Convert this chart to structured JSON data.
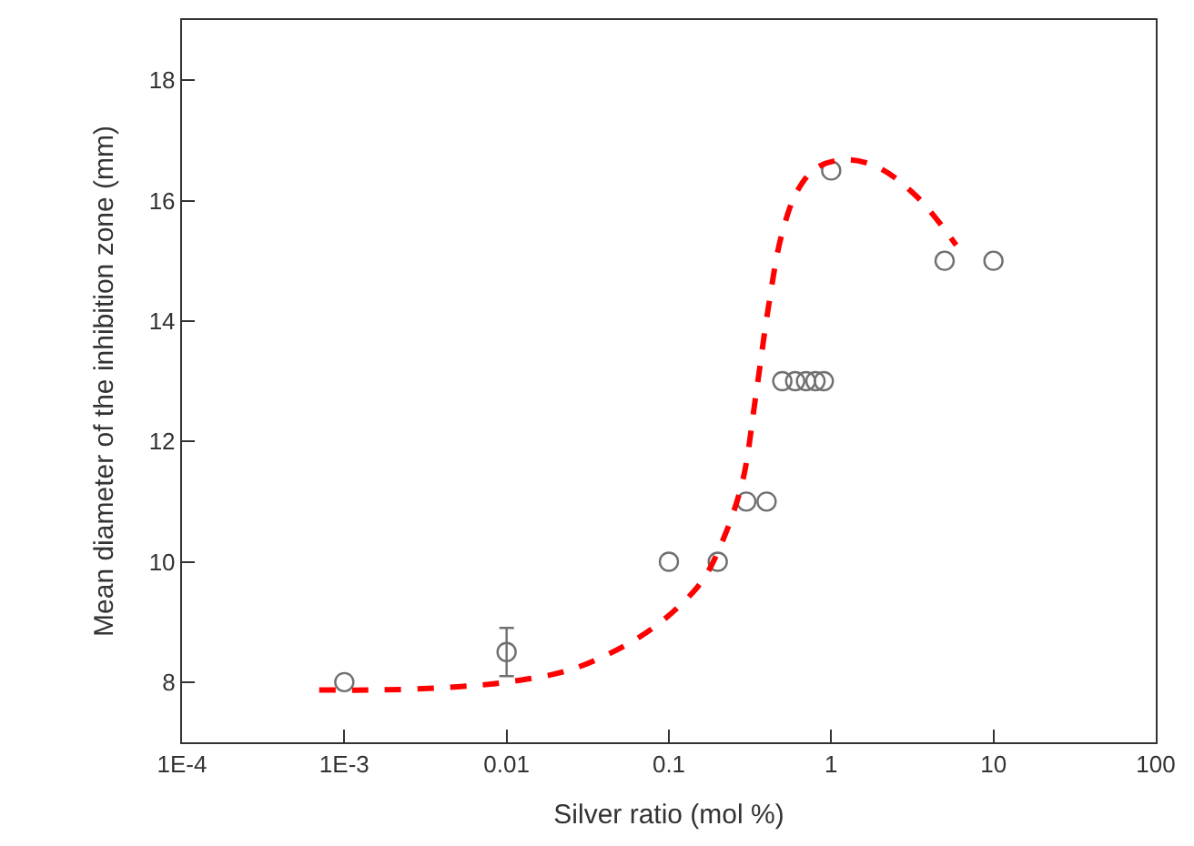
{
  "chart_data": {
    "type": "scatter",
    "xlabel": "Silver ratio (mol %)",
    "ylabel": "Mean diameter of the inhibition zone (mm)",
    "log": "x",
    "xlim": [
      0.0001,
      100
    ],
    "xticks": [
      {
        "value": 0.0001,
        "label": "1E-4"
      },
      {
        "value": 0.001,
        "label": "1E-3"
      },
      0.01,
      0.1,
      1,
      10,
      100
    ],
    "ylim": [
      7,
      19
    ],
    "yticks": [
      8,
      10,
      12,
      14,
      16,
      18
    ],
    "series": [
      {
        "marker": "circle",
        "color": "#707070",
        "x": [
          0.001,
          0.01,
          0.1,
          0.2,
          0.3,
          0.4,
          0.5,
          0.6,
          0.7,
          0.8,
          0.9,
          1,
          5,
          10
        ],
        "values": [
          8,
          8.5,
          10,
          10,
          11,
          11,
          13,
          13,
          13,
          13,
          13,
          16.5,
          15,
          15
        ],
        "errors": [
          null,
          0.4,
          null,
          null,
          null,
          null,
          null,
          null,
          null,
          null,
          null,
          null,
          null,
          null
        ]
      },
      {
        "type": "line",
        "marker": "none",
        "line_style": "dashed",
        "color": "#ff0000",
        "x": [
          0.0007,
          0.00166,
          0.0042,
          0.01,
          0.0257,
          0.066,
          0.1135,
          0.164,
          0.216,
          0.284,
          0.342,
          0.411,
          0.494,
          0.621,
          0.818,
          1.24,
          1.95,
          3.39,
          5.89
        ],
        "values": [
          7.87,
          7.87,
          7.91,
          8.0,
          8.22,
          8.75,
          9.24,
          9.72,
          10.37,
          11.33,
          12.73,
          14.24,
          15.42,
          16.17,
          16.55,
          16.68,
          16.55,
          16.06,
          15.26
        ]
      }
    ]
  }
}
